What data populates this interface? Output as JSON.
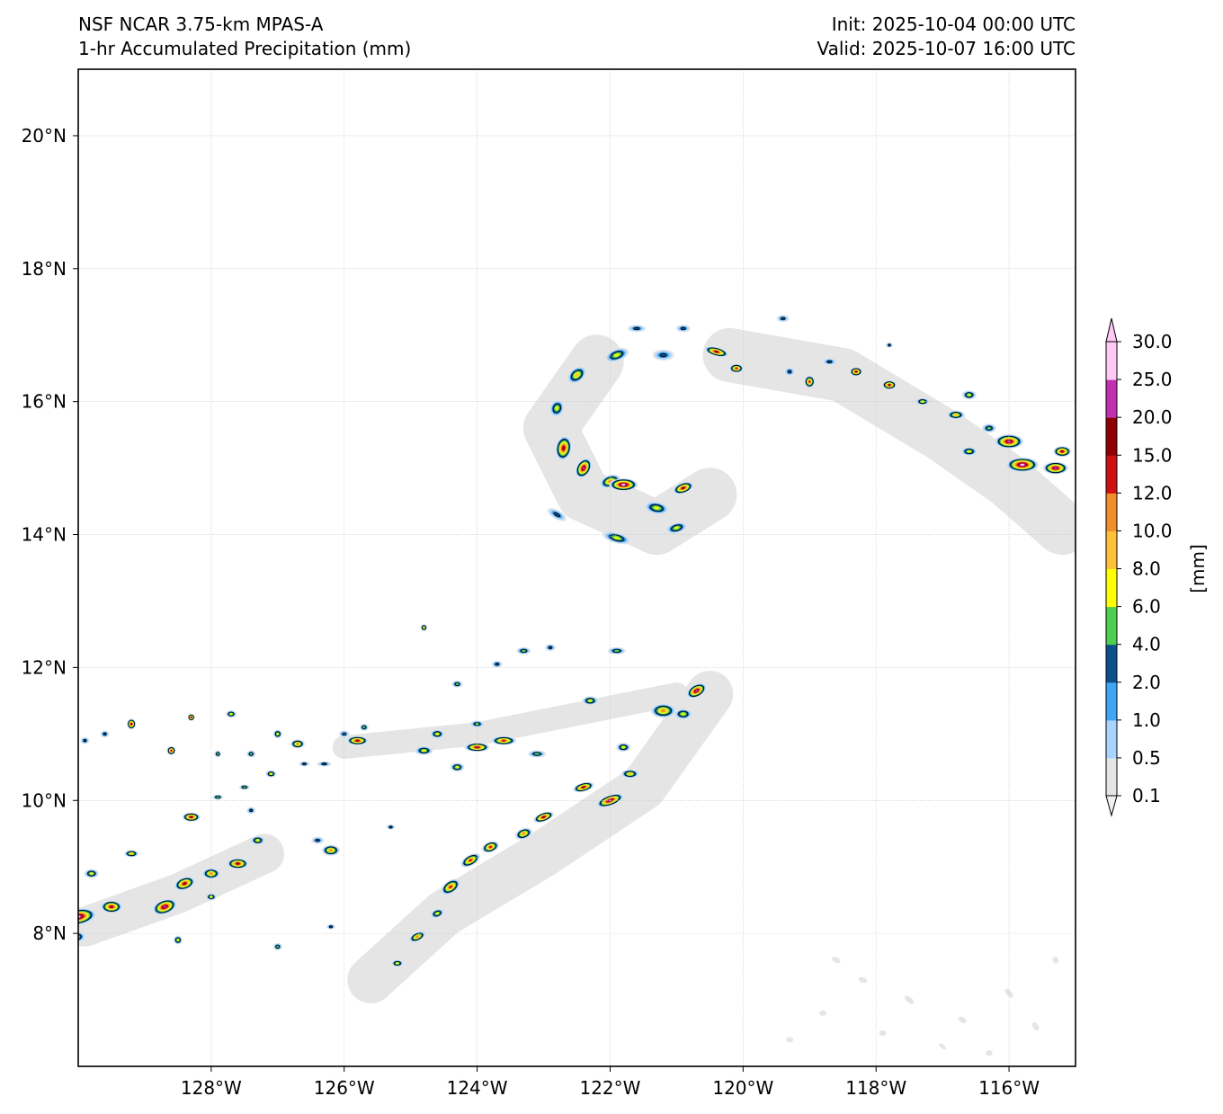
{
  "header": {
    "model": "NSF NCAR 3.75-km MPAS-A",
    "field": "1-hr Accumulated Precipitation (mm)",
    "init": "Init: 2025-10-04 00:00 UTC",
    "valid": "Valid: 2025-10-07 16:00 UTC"
  },
  "map": {
    "lon_range": [
      -130,
      -115
    ],
    "lat_range": [
      6,
      21
    ],
    "lon_ticks": [
      {
        "value": -128,
        "label": "128°W"
      },
      {
        "value": -126,
        "label": "126°W"
      },
      {
        "value": -124,
        "label": "124°W"
      },
      {
        "value": -122,
        "label": "122°W"
      },
      {
        "value": -120,
        "label": "120°W"
      },
      {
        "value": -118,
        "label": "118°W"
      },
      {
        "value": -116,
        "label": "116°W"
      }
    ],
    "lat_ticks": [
      {
        "value": 8,
        "label": "8°N"
      },
      {
        "value": 10,
        "label": "10°N"
      },
      {
        "value": 12,
        "label": "12°N"
      },
      {
        "value": 14,
        "label": "14°N"
      },
      {
        "value": 16,
        "label": "16°N"
      },
      {
        "value": 18,
        "label": "18°N"
      },
      {
        "value": 20,
        "label": "20°N"
      }
    ],
    "grid": true
  },
  "colorbar": {
    "unit_label": "[mm]",
    "levels": [
      "0.1",
      "0.5",
      "1.0",
      "2.0",
      "4.0",
      "6.0",
      "8.0",
      "10.0",
      "12.0",
      "15.0",
      "20.0",
      "25.0",
      "30.0"
    ],
    "colors": [
      "#e5e5e5",
      "#a8d4ff",
      "#3fa5f5",
      "#0a4e8a",
      "#4fcf4f",
      "#ffff00",
      "#ffc13a",
      "#f08e2a",
      "#d01010",
      "#900000",
      "#c030b0",
      "#ffc8f5"
    ],
    "extend": "both"
  }
}
